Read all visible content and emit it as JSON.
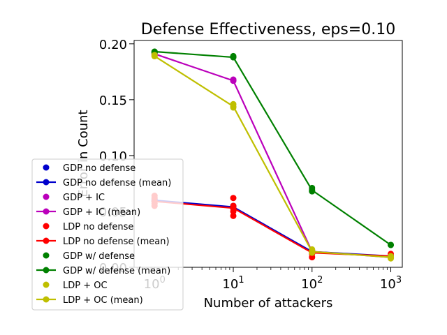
{
  "chart_data": {
    "type": "line",
    "title": "Defense Effectiveness, eps=0.10",
    "xlabel": "Number of attackers",
    "ylabel": "Error in Count",
    "xscale": "log",
    "xlim": [
      0.55,
      1400
    ],
    "ylim": [
      0.0,
      0.203
    ],
    "x_ticks": [
      1,
      10,
      100,
      1000
    ],
    "x_tick_labels": [
      {
        "base": "10",
        "exp": "0"
      },
      {
        "base": "10",
        "exp": "1"
      },
      {
        "base": "10",
        "exp": "2"
      },
      {
        "base": "10",
        "exp": "3"
      }
    ],
    "y_ticks": [
      0.0,
      0.05,
      0.1,
      0.15,
      0.2
    ],
    "y_tick_labels": [
      "0.00",
      "0.05",
      "0.10",
      "0.15",
      "0.20"
    ],
    "grid": false,
    "legend_position": "lower-left",
    "x": [
      1,
      10,
      100,
      1000
    ],
    "series": [
      {
        "name": "GDP no defense",
        "mean_name": "GDP no defense (mean)",
        "color": "#0000cc",
        "points": [
          [
            1,
            0.059
          ],
          [
            1,
            0.061
          ],
          [
            10,
            0.055
          ],
          [
            10,
            0.053
          ],
          [
            100,
            0.014
          ],
          [
            1000,
            0.01
          ]
        ],
        "mean": [
          0.06,
          0.054,
          0.014,
          0.01
        ]
      },
      {
        "name": "GDP + IC",
        "mean_name": "GDP + IC (mean)",
        "color": "#bb00bb",
        "points": [
          [
            1,
            0.192
          ],
          [
            1,
            0.19
          ],
          [
            10,
            0.167
          ],
          [
            10,
            0.168
          ],
          [
            100,
            0.014
          ],
          [
            1000,
            0.009
          ]
        ],
        "mean": [
          0.191,
          0.167,
          0.014,
          0.009
        ]
      },
      {
        "name": "LDP no defense",
        "mean_name": "LDP no defense (mean)",
        "color": "#ff0000",
        "points": [
          [
            1,
            0.064
          ],
          [
            1,
            0.062
          ],
          [
            1,
            0.059
          ],
          [
            1,
            0.057
          ],
          [
            1,
            0.055
          ],
          [
            10,
            0.062
          ],
          [
            10,
            0.055
          ],
          [
            10,
            0.053
          ],
          [
            10,
            0.05
          ],
          [
            10,
            0.046
          ],
          [
            100,
            0.015
          ],
          [
            100,
            0.012
          ],
          [
            100,
            0.009
          ],
          [
            1000,
            0.012
          ],
          [
            1000,
            0.009
          ]
        ],
        "mean": [
          0.059,
          0.053,
          0.013,
          0.01
        ]
      },
      {
        "name": "GDP w/ defense",
        "mean_name": "GDP w/ defense (mean)",
        "color": "#008000",
        "points": [
          [
            1,
            0.193
          ],
          [
            1,
            0.192
          ],
          [
            10,
            0.188
          ],
          [
            10,
            0.189
          ],
          [
            100,
            0.071
          ],
          [
            100,
            0.068
          ],
          [
            1000,
            0.02
          ]
        ],
        "mean": [
          0.193,
          0.188,
          0.069,
          0.02
        ]
      },
      {
        "name": "LDP + OC",
        "mean_name": "LDP + OC (mean)",
        "color": "#bfbf00",
        "points": [
          [
            1,
            0.19
          ],
          [
            1,
            0.189
          ],
          [
            10,
            0.146
          ],
          [
            10,
            0.143
          ],
          [
            100,
            0.016
          ],
          [
            100,
            0.013
          ],
          [
            1000,
            0.01
          ],
          [
            1000,
            0.008
          ]
        ],
        "mean": [
          0.189,
          0.144,
          0.014,
          0.009
        ]
      }
    ]
  }
}
